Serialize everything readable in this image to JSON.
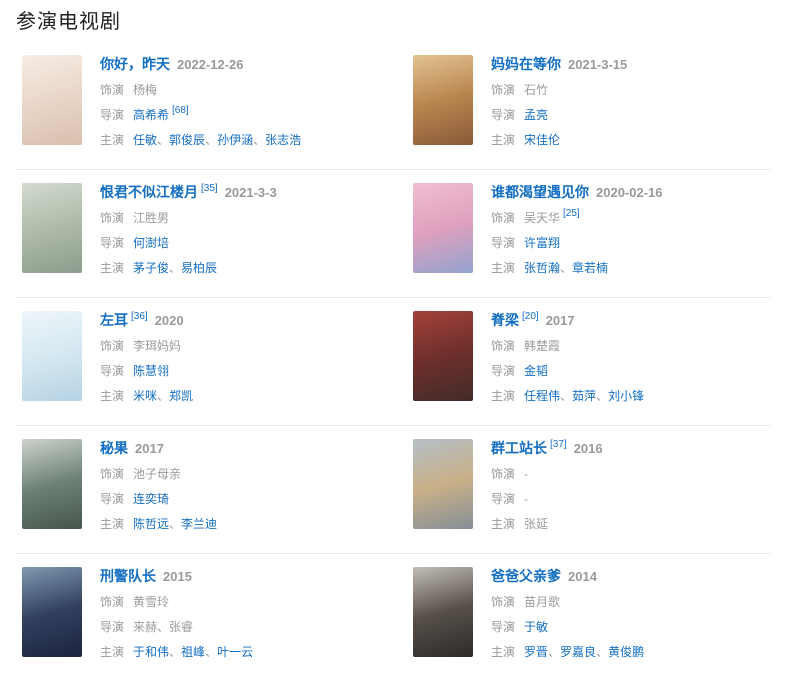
{
  "section": {
    "title": "参演电视剧"
  },
  "labels": {
    "role": "饰演",
    "director": "导演",
    "starring": "主演",
    "separator": "、"
  },
  "colors": {
    "link": "#136ec2",
    "date": "#999999",
    "text": "#9b9b9b",
    "divider": "#eaeaea",
    "heading": "#222222"
  },
  "shows": [
    {
      "title": "你好，昨天",
      "title_ref": "",
      "date": "2022-12-26",
      "role": "杨梅",
      "role_ref": "",
      "directors": [
        {
          "name": "高希希",
          "link": true
        }
      ],
      "director_ref": "[68]",
      "stars": [
        {
          "name": "任敏",
          "link": true
        },
        {
          "name": "郭俊辰",
          "link": true
        },
        {
          "name": "孙伊涵",
          "link": true
        },
        {
          "name": "张志浩",
          "link": true
        }
      ],
      "poster_gradient": [
        "#f6ede5",
        "#e9d6c8",
        "#d9bfae"
      ]
    },
    {
      "title": "妈妈在等你",
      "title_ref": "",
      "date": "2021-3-15",
      "role": "石竹",
      "role_ref": "",
      "directors": [
        {
          "name": "孟亮",
          "link": true
        }
      ],
      "director_ref": "",
      "stars": [
        {
          "name": "宋佳伦",
          "link": true
        }
      ],
      "poster_gradient": [
        "#e3c493",
        "#b9854f",
        "#8a5a38"
      ]
    },
    {
      "title": "恨君不似江楼月",
      "title_ref": "[35]",
      "date": "2021-3-3",
      "role": "江胜男",
      "role_ref": "",
      "directors": [
        {
          "name": "何澍培",
          "link": true
        }
      ],
      "director_ref": "",
      "stars": [
        {
          "name": "茅子俊",
          "link": true
        },
        {
          "name": "易柏辰",
          "link": true
        }
      ],
      "poster_gradient": [
        "#d3dbcf",
        "#aebbaa",
        "#8d9c8c"
      ]
    },
    {
      "title": "谁都渴望遇见你",
      "title_ref": "",
      "date": "2020-02-16",
      "role": "吴天华",
      "role_ref": "[25]",
      "directors": [
        {
          "name": "许富翔",
          "link": true
        }
      ],
      "director_ref": "",
      "stars": [
        {
          "name": "张哲瀚",
          "link": true
        },
        {
          "name": "章若楠",
          "link": true
        }
      ],
      "poster_gradient": [
        "#f0bfd2",
        "#dfa0bd",
        "#93a3cf"
      ]
    },
    {
      "title": "左耳",
      "title_ref": "[36]",
      "date": "2020",
      "role": "李珥妈妈",
      "role_ref": "",
      "directors": [
        {
          "name": "陈慧翎",
          "link": true
        }
      ],
      "director_ref": "",
      "stars": [
        {
          "name": "米咪",
          "link": true
        },
        {
          "name": "郑凯",
          "link": true
        }
      ],
      "poster_gradient": [
        "#eef6fa",
        "#d5e8f1",
        "#b5d2e3"
      ]
    },
    {
      "title": "脊梁",
      "title_ref": "[20]",
      "date": "2017",
      "role": "韩楚霞",
      "role_ref": "",
      "directors": [
        {
          "name": "金韬",
          "link": true
        }
      ],
      "director_ref": "",
      "stars": [
        {
          "name": "任程伟",
          "link": true
        },
        {
          "name": "茹萍",
          "link": true
        },
        {
          "name": "刘小锋",
          "link": true
        }
      ],
      "poster_gradient": [
        "#a4423a",
        "#6e2f2c",
        "#422b28"
      ]
    },
    {
      "title": "秘果",
      "title_ref": "",
      "date": "2017",
      "role": "池子母亲",
      "role_ref": "",
      "directors": [
        {
          "name": "连奕琦",
          "link": true
        }
      ],
      "director_ref": "",
      "stars": [
        {
          "name": "陈哲远",
          "link": true
        },
        {
          "name": "李兰迪",
          "link": true
        }
      ],
      "poster_gradient": [
        "#cdd3cb",
        "#6f8278",
        "#46554c"
      ]
    },
    {
      "title": "群工站长",
      "title_ref": "[37]",
      "date": "2016",
      "role": "-",
      "role_ref": "",
      "directors": [
        {
          "name": "-",
          "link": false
        }
      ],
      "director_ref": "",
      "stars": [
        {
          "name": "张延",
          "link": false
        }
      ],
      "poster_gradient": [
        "#b4bfc6",
        "#c9b088",
        "#858f96"
      ]
    },
    {
      "title": "刑警队长",
      "title_ref": "",
      "date": "2015",
      "role": "黄雪玲",
      "role_ref": "",
      "directors": [
        {
          "name": "来赫",
          "link": false
        },
        {
          "name": "张睿",
          "link": false
        }
      ],
      "director_ref": "",
      "stars": [
        {
          "name": "于和伟",
          "link": true
        },
        {
          "name": "祖峰",
          "link": true
        },
        {
          "name": "叶一云",
          "link": true
        }
      ],
      "poster_gradient": [
        "#8099b1",
        "#32415f",
        "#1c2440"
      ]
    },
    {
      "title": "爸爸父亲爹",
      "title_ref": "",
      "date": "2014",
      "role": "苗月歌",
      "role_ref": "",
      "directors": [
        {
          "name": "于敏",
          "link": true
        }
      ],
      "director_ref": "",
      "stars": [
        {
          "name": "罗晋",
          "link": true
        },
        {
          "name": "罗嘉良",
          "link": true
        },
        {
          "name": "黄俊鹏",
          "link": true
        }
      ],
      "poster_gradient": [
        "#c2beb5",
        "#57504a",
        "#2d2b29"
      ]
    }
  ]
}
